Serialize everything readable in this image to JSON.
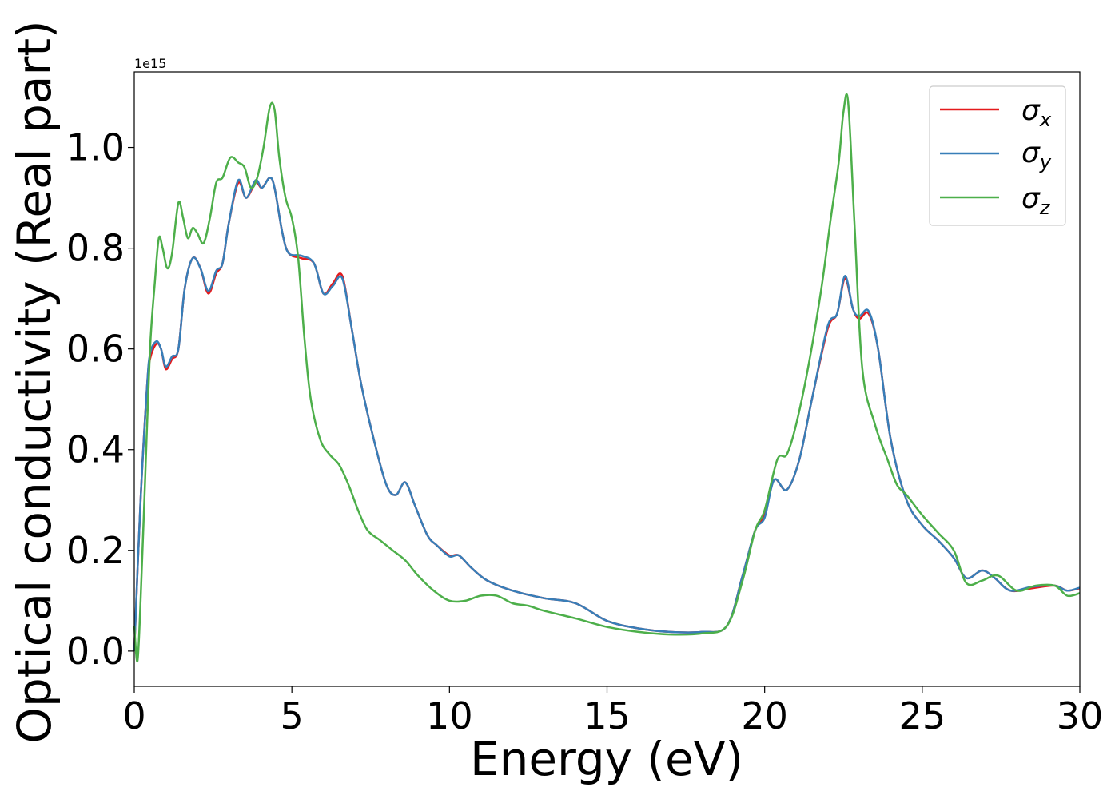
{
  "chart_data": {
    "type": "line",
    "xlabel": "Energy (eV)",
    "ylabel": "Optical conductivity (Real part)",
    "y_offset_label": "1e15",
    "xlim": [
      0,
      30
    ],
    "ylim": [
      -0.07,
      1.15
    ],
    "x_ticks": [
      0,
      5,
      10,
      15,
      20,
      25,
      30
    ],
    "x_tick_labels": [
      "0",
      "5",
      "10",
      "15",
      "20",
      "25",
      "30"
    ],
    "y_ticks": [
      0.0,
      0.2,
      0.4,
      0.6,
      0.8,
      1.0
    ],
    "y_tick_labels": [
      "0.0",
      "0.2",
      "0.4",
      "0.6",
      "0.8",
      "1.0"
    ],
    "grid": false,
    "legend_position": "top-right",
    "series": [
      {
        "name": "σ",
        "subscript": "x",
        "color": "#e41a1c",
        "x": [
          0.0,
          0.2,
          0.4,
          0.5,
          0.7,
          0.85,
          1.0,
          1.2,
          1.4,
          1.6,
          1.85,
          2.1,
          2.35,
          2.6,
          2.8,
          3.0,
          3.3,
          3.55,
          3.85,
          4.05,
          4.3,
          4.45,
          4.7,
          4.9,
          5.3,
          5.7,
          6.0,
          6.3,
          6.6,
          6.9,
          7.2,
          7.6,
          8.0,
          8.3,
          8.6,
          8.9,
          9.3,
          9.6,
          10.0,
          10.3,
          10.7,
          11.2,
          12.0,
          13.0,
          14.0,
          15.0,
          16.0,
          17.0,
          18.0,
          18.8,
          19.3,
          19.7,
          20.0,
          20.3,
          20.7,
          21.1,
          21.5,
          22.0,
          22.3,
          22.55,
          22.8,
          23.0,
          23.3,
          23.6,
          24.0,
          24.5,
          25.0,
          25.5,
          26.0,
          26.4,
          26.9,
          27.3,
          27.8,
          28.5,
          29.2,
          29.6,
          30.0
        ],
        "values": [
          0.0,
          0.3,
          0.52,
          0.58,
          0.61,
          0.6,
          0.56,
          0.58,
          0.6,
          0.72,
          0.78,
          0.76,
          0.71,
          0.75,
          0.77,
          0.85,
          0.93,
          0.9,
          0.93,
          0.92,
          0.94,
          0.92,
          0.83,
          0.79,
          0.78,
          0.77,
          0.71,
          0.73,
          0.745,
          0.64,
          0.53,
          0.42,
          0.33,
          0.31,
          0.335,
          0.29,
          0.23,
          0.21,
          0.19,
          0.19,
          0.165,
          0.14,
          0.12,
          0.105,
          0.095,
          0.06,
          0.045,
          0.038,
          0.038,
          0.05,
          0.15,
          0.24,
          0.27,
          0.34,
          0.32,
          0.38,
          0.5,
          0.64,
          0.67,
          0.74,
          0.68,
          0.66,
          0.67,
          0.6,
          0.42,
          0.3,
          0.25,
          0.22,
          0.185,
          0.145,
          0.16,
          0.145,
          0.12,
          0.125,
          0.13,
          0.12,
          0.125
        ]
      },
      {
        "name": "σ",
        "subscript": "y",
        "color": "#377eb8",
        "x": [
          0.0,
          0.2,
          0.4,
          0.5,
          0.7,
          0.85,
          1.0,
          1.2,
          1.4,
          1.6,
          1.85,
          2.1,
          2.35,
          2.6,
          2.8,
          3.0,
          3.3,
          3.55,
          3.85,
          4.05,
          4.3,
          4.45,
          4.7,
          4.9,
          5.3,
          5.7,
          6.0,
          6.3,
          6.6,
          6.9,
          7.2,
          7.6,
          8.0,
          8.3,
          8.6,
          8.9,
          9.3,
          9.6,
          10.0,
          10.3,
          10.7,
          11.2,
          12.0,
          13.0,
          14.0,
          15.0,
          16.0,
          17.0,
          18.0,
          18.8,
          19.3,
          19.7,
          20.0,
          20.3,
          20.7,
          21.1,
          21.5,
          22.0,
          22.3,
          22.55,
          22.8,
          23.0,
          23.3,
          23.6,
          24.0,
          24.5,
          25.0,
          25.5,
          26.0,
          26.4,
          26.9,
          27.3,
          27.8,
          28.5,
          29.2,
          29.6,
          30.0
        ],
        "values": [
          0.0,
          0.3,
          0.52,
          0.59,
          0.615,
          0.6,
          0.565,
          0.585,
          0.6,
          0.72,
          0.78,
          0.76,
          0.715,
          0.755,
          0.77,
          0.85,
          0.935,
          0.9,
          0.935,
          0.92,
          0.94,
          0.92,
          0.83,
          0.79,
          0.785,
          0.77,
          0.71,
          0.725,
          0.74,
          0.64,
          0.53,
          0.42,
          0.33,
          0.31,
          0.335,
          0.29,
          0.23,
          0.21,
          0.188,
          0.19,
          0.165,
          0.14,
          0.12,
          0.105,
          0.095,
          0.06,
          0.045,
          0.038,
          0.038,
          0.05,
          0.15,
          0.24,
          0.265,
          0.34,
          0.32,
          0.38,
          0.5,
          0.645,
          0.67,
          0.745,
          0.68,
          0.665,
          0.675,
          0.6,
          0.42,
          0.3,
          0.25,
          0.22,
          0.185,
          0.145,
          0.16,
          0.145,
          0.12,
          0.128,
          0.13,
          0.12,
          0.126
        ]
      },
      {
        "name": "σ",
        "subscript": "z",
        "color": "#4daf4a",
        "x": [
          0.0,
          0.1,
          0.2,
          0.35,
          0.5,
          0.65,
          0.78,
          0.9,
          1.05,
          1.2,
          1.4,
          1.55,
          1.7,
          1.85,
          2.0,
          2.2,
          2.4,
          2.6,
          2.8,
          3.05,
          3.3,
          3.5,
          3.7,
          3.9,
          4.1,
          4.3,
          4.45,
          4.6,
          4.8,
          5.0,
          5.2,
          5.4,
          5.6,
          5.9,
          6.2,
          6.5,
          6.8,
          7.1,
          7.4,
          7.8,
          8.2,
          8.6,
          9.0,
          9.5,
          10.0,
          10.5,
          11.0,
          11.5,
          12.0,
          12.5,
          13.0,
          14.0,
          15.0,
          16.0,
          17.0,
          18.0,
          18.8,
          19.3,
          19.7,
          20.0,
          20.4,
          20.7,
          21.0,
          21.4,
          21.8,
          22.1,
          22.35,
          22.5,
          22.65,
          22.85,
          23.1,
          23.5,
          23.9,
          24.2,
          24.5,
          25.0,
          25.5,
          26.0,
          26.4,
          26.9,
          27.4,
          28.0,
          28.6,
          29.2,
          29.6,
          30.0
        ],
        "values": [
          0.05,
          -0.02,
          0.1,
          0.35,
          0.6,
          0.73,
          0.82,
          0.8,
          0.76,
          0.79,
          0.89,
          0.86,
          0.82,
          0.84,
          0.83,
          0.81,
          0.86,
          0.93,
          0.94,
          0.98,
          0.97,
          0.96,
          0.92,
          0.94,
          1.0,
          1.08,
          1.075,
          0.98,
          0.9,
          0.86,
          0.78,
          0.62,
          0.5,
          0.42,
          0.39,
          0.37,
          0.33,
          0.28,
          0.24,
          0.22,
          0.2,
          0.18,
          0.15,
          0.12,
          0.1,
          0.1,
          0.11,
          0.11,
          0.095,
          0.09,
          0.08,
          0.065,
          0.048,
          0.038,
          0.033,
          0.035,
          0.05,
          0.14,
          0.24,
          0.28,
          0.38,
          0.39,
          0.45,
          0.57,
          0.72,
          0.86,
          0.97,
          1.07,
          1.09,
          0.85,
          0.56,
          0.45,
          0.38,
          0.33,
          0.31,
          0.27,
          0.235,
          0.2,
          0.135,
          0.14,
          0.15,
          0.12,
          0.13,
          0.13,
          0.11,
          0.115
        ]
      }
    ]
  }
}
